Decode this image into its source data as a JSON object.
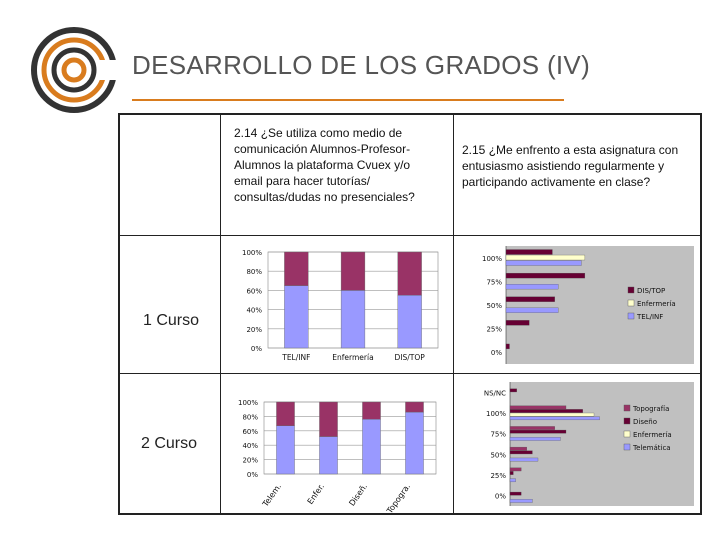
{
  "slide": {
    "title": "DESARROLLO DE LOS GRADOS (IV)",
    "accent_color": "#d97c1e",
    "logo_icon": "concentric-circles-logo"
  },
  "table": {
    "question_214": "2.14 ¿Se utiliza como medio de comunicación Alumnos-Profesor-Alumnos la plataforma Cvuex y/o email para hacer tutorías/ consultas/dudas no presenciales?",
    "question_215": "2.15 ¿Me enfrento a esta asignatura con entusiasmo asistiendo regularmente y participando activamente en clase?",
    "row1_label": "1 Curso",
    "row2_label": "2 Curso"
  },
  "chart_data": [
    {
      "id": "c1",
      "type": "bar",
      "stacked": true,
      "orientation": "vertical",
      "categories": [
        "TEL/INF",
        "Enfermería",
        "DIS/TOP"
      ],
      "series": [
        {
          "color": "#9999ff",
          "values": [
            65,
            60,
            55
          ]
        },
        {
          "color": "#993366",
          "values": [
            35,
            40,
            45
          ]
        }
      ],
      "yticks": [
        "0%",
        "20%",
        "40%",
        "60%",
        "80%",
        "100%"
      ],
      "ylim": [
        0,
        100
      ],
      "grid": true
    },
    {
      "id": "c2",
      "type": "bar",
      "orientation": "horizontal",
      "categories": [
        "0%",
        "25%",
        "50%",
        "75%",
        "100%"
      ],
      "series": [
        {
          "name": "DIS/TOP",
          "color": "#660033",
          "values": [
            3,
            20,
            42,
            68,
            40
          ]
        },
        {
          "name": "Enfermería",
          "color": "#ffffcc",
          "values": [
            0,
            0,
            0,
            0,
            68
          ]
        },
        {
          "name": "TEL/INF",
          "color": "#9999ff",
          "values": [
            0,
            0,
            45,
            45,
            65
          ]
        }
      ],
      "legend_position": "right",
      "background": "#c0c0c0",
      "xlim": [
        0,
        100
      ]
    },
    {
      "id": "c3",
      "type": "bar",
      "stacked": true,
      "orientation": "vertical",
      "categories": [
        "Telem.",
        "Enfer.",
        "Diseñ.",
        "Topogra."
      ],
      "series": [
        {
          "color": "#9999ff",
          "values": [
            67,
            52,
            76,
            86
          ]
        },
        {
          "color": "#993366",
          "values": [
            33,
            48,
            24,
            14
          ]
        }
      ],
      "yticks": [
        "0%",
        "20%",
        "40%",
        "60%",
        "80%",
        "100%"
      ],
      "ylim": [
        0,
        100
      ],
      "grid": true
    },
    {
      "id": "c4",
      "type": "bar",
      "orientation": "horizontal",
      "categories": [
        "0%",
        "25%",
        "50%",
        "75%",
        "100%",
        "NS/NC"
      ],
      "series": [
        {
          "name": "Topografía",
          "color": "#993366",
          "values": [
            0,
            10,
            15,
            40,
            50,
            0
          ]
        },
        {
          "name": "Diseño",
          "color": "#660033",
          "values": [
            10,
            3,
            20,
            50,
            65,
            6
          ]
        },
        {
          "name": "Enfermería",
          "color": "#ffffcc",
          "values": [
            0,
            0,
            0,
            0,
            75,
            0
          ]
        },
        {
          "name": "Telemática",
          "color": "#9999ff",
          "values": [
            20,
            5,
            25,
            45,
            80,
            0
          ]
        }
      ],
      "legend_position": "right",
      "background": "#c0c0c0",
      "xlim": [
        0,
        100
      ]
    }
  ]
}
